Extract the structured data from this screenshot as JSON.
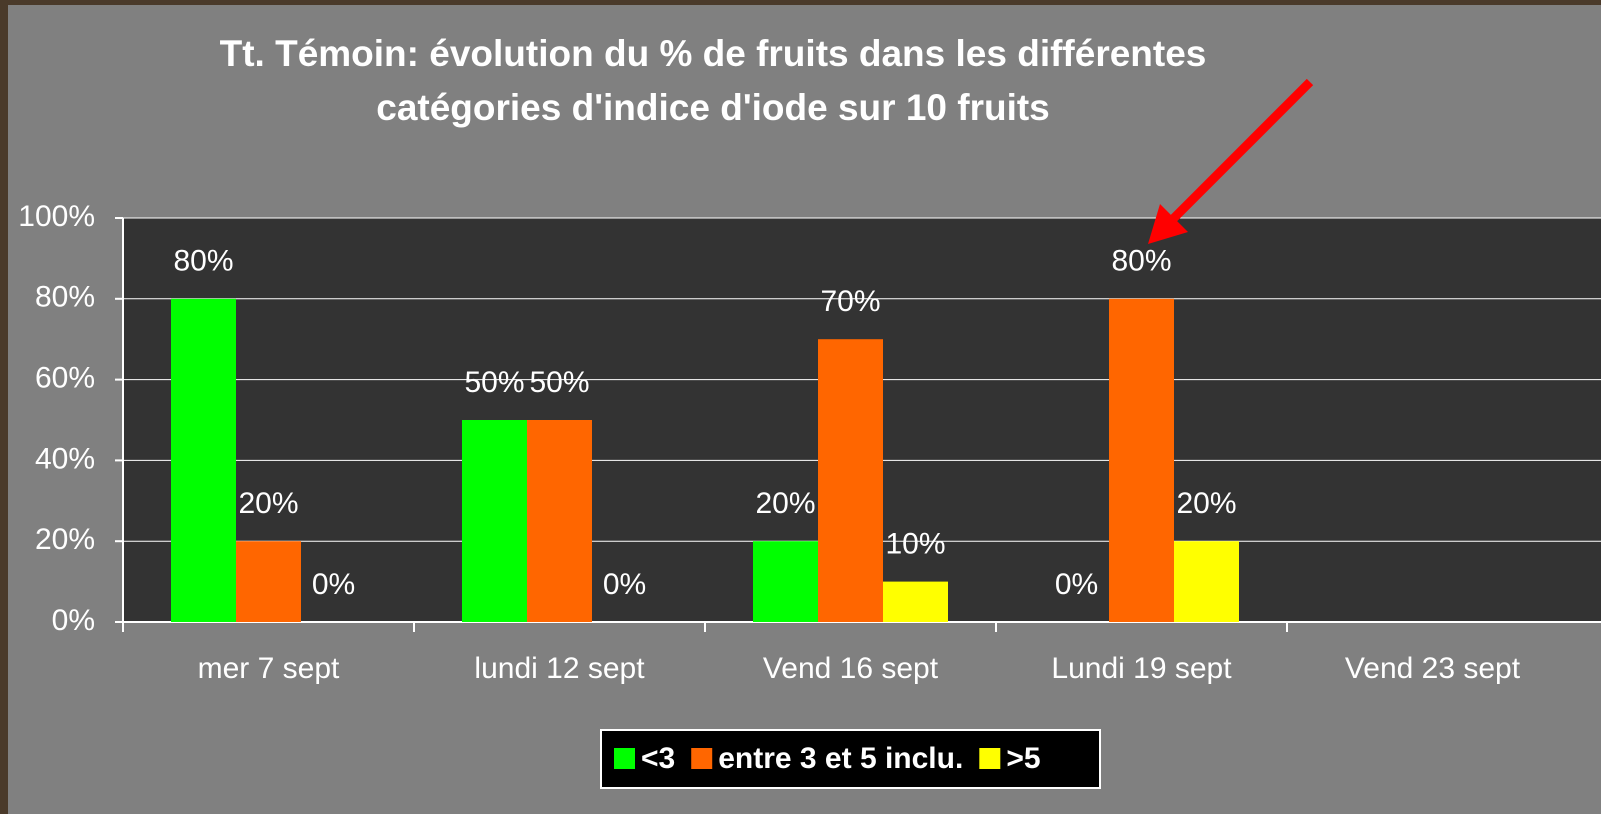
{
  "chart_data": {
    "type": "bar",
    "title": [
      "Tt. Témoin: évolution du % de fruits dans les différentes",
      "catégories d'indice d'iode sur 10 fruits"
    ],
    "categories": [
      "mer 7 sept",
      "lundi 12 sept",
      "Vend 16 sept",
      "Lundi 19 sept",
      "Vend 23 sept"
    ],
    "series": [
      {
        "name": "<3",
        "color": "#00ff00",
        "values": [
          80,
          50,
          20,
          0,
          null
        ],
        "value_labels": [
          "80%",
          "50%",
          "20%",
          "0%",
          null
        ]
      },
      {
        "name": "entre 3 et 5 inclu.",
        "color": "#ff6600",
        "values": [
          20,
          50,
          70,
          80,
          null
        ],
        "value_labels": [
          "20%",
          "50%",
          "70%",
          "80%",
          null
        ]
      },
      {
        "name": ">5",
        "color": "#ffff00",
        "values": [
          0,
          0,
          10,
          20,
          null
        ],
        "value_labels": [
          "0%",
          "0%",
          "10%",
          "20%",
          null
        ]
      }
    ],
    "ylim": [
      0,
      100
    ],
    "yticks": [
      {
        "value": 0,
        "label": "0%"
      },
      {
        "value": 20,
        "label": "20%"
      },
      {
        "value": 40,
        "label": "40%"
      },
      {
        "value": 60,
        "label": "60%"
      },
      {
        "value": 80,
        "label": "80%"
      },
      {
        "value": 100,
        "label": "100%"
      }
    ],
    "grid": true,
    "legend": "bottom"
  }
}
